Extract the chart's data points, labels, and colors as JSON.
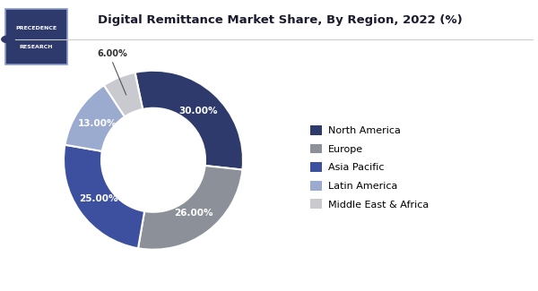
{
  "title": "Digital Remittance Market Share, By Region, 2022 (%)",
  "labels": [
    "North America",
    "Europe",
    "Asia Pacific",
    "Latin America",
    "Middle East & Africa"
  ],
  "values": [
    30.0,
    26.0,
    25.0,
    13.0,
    6.0
  ],
  "label_texts": [
    "30.00%",
    "26.00%",
    "25.00%",
    "13.00%",
    "6.00%"
  ],
  "colors": [
    "#2d3a6b",
    "#8c9098",
    "#3d4f9f",
    "#9baacf",
    "#c8cacf"
  ],
  "background_color": "#ffffff",
  "title_color": "#1a1a2e",
  "wedge_edge_color": "#ffffff",
  "logo_bg": "#2d3a6b",
  "logo_text1": "PRECEDENCE",
  "logo_text2": "RESEARCH"
}
